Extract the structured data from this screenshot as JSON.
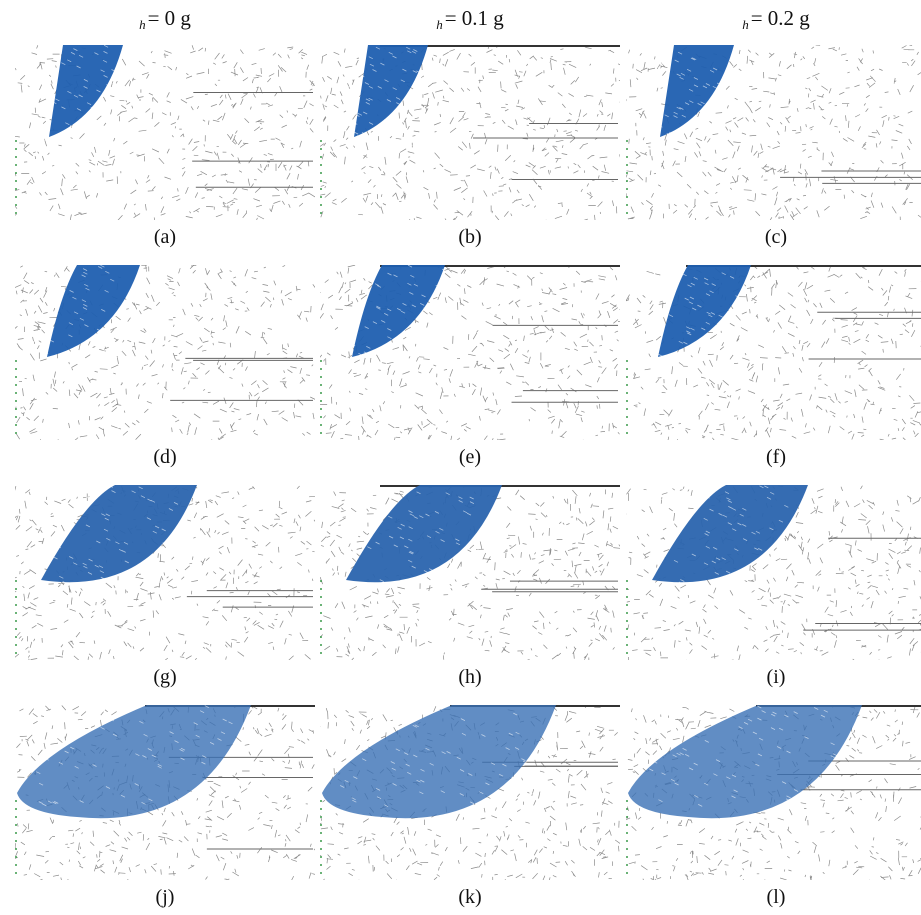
{
  "headers": [
    {
      "sub": "h",
      "text": "= 0 g"
    },
    {
      "sub": "h",
      "text": "= 0.1 g"
    },
    {
      "sub": "h",
      "text": "= 0.2 g"
    }
  ],
  "panels": [
    {
      "label": "(a)"
    },
    {
      "label": "(b)"
    },
    {
      "label": "(c)"
    },
    {
      "label": "(d)"
    },
    {
      "label": "(e)"
    },
    {
      "label": "(f)"
    },
    {
      "label": "(g)"
    },
    {
      "label": "(h)"
    },
    {
      "label": "(i)"
    },
    {
      "label": "(j)"
    },
    {
      "label": "(k)"
    },
    {
      "label": "(l)"
    }
  ]
}
